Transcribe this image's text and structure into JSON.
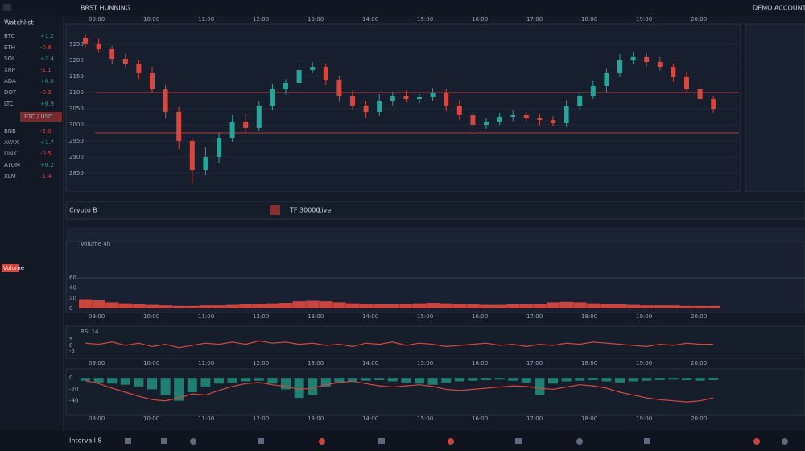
{
  "header": {
    "title": "BRST HUNNING",
    "account": "DEMO ACCOUNT"
  },
  "sidebar": {
    "title": "Watchlist",
    "active": "BTC / USD",
    "volume_button": "Volume",
    "rows": [
      {
        "symbol": "BTC",
        "change": "+1.2"
      },
      {
        "symbol": "ETH",
        "change": "-0.8"
      },
      {
        "symbol": "SOL",
        "change": "+2.4"
      },
      {
        "symbol": "XRP",
        "change": "-1.1"
      },
      {
        "symbol": "ADA",
        "change": "+0.6"
      },
      {
        "symbol": "DOT",
        "change": "-0.3"
      },
      {
        "symbol": "LTC",
        "change": "+0.9"
      },
      {
        "symbol": "BNB",
        "change": "-2.0"
      },
      {
        "symbol": "AVAX",
        "change": "+1.7"
      },
      {
        "symbol": "LINK",
        "change": "-0.5"
      },
      {
        "symbol": "ATOM",
        "change": "+0.2"
      },
      {
        "symbol": "XLM",
        "change": "-1.4"
      }
    ]
  },
  "info_bar": {
    "symbol": "Crypto B",
    "interval": "TF 30000",
    "mode": "Live"
  },
  "volume_panel": {
    "label": "Volume 4h"
  },
  "oscillator_panel": {
    "label": "RSI 14"
  },
  "toolbar": {
    "label": "Intervall 8"
  },
  "time_labels": [
    "09:00",
    "10:00",
    "11:00",
    "12:00",
    "13:00",
    "14:00",
    "15:00",
    "16:00",
    "17:00",
    "18:00",
    "19:00",
    "20:00"
  ],
  "price_chart": {
    "type": "candlestick",
    "open": [
      3270,
      3250,
      3235,
      3205,
      3190,
      3160,
      3110,
      3040,
      2950,
      2860,
      2900,
      2960,
      3010,
      2990,
      3060,
      3110,
      3130,
      3170,
      3180,
      3140,
      3090,
      3060,
      3040,
      3075,
      3090,
      3080,
      3085,
      3100,
      3060,
      3030,
      3000,
      3010,
      3025,
      3030,
      3020,
      3015,
      3005,
      3060,
      3090,
      3120,
      3160,
      3200,
      3210,
      3195,
      3180,
      3150,
      3110,
      3080
    ],
    "high": [
      3282,
      3268,
      3245,
      3220,
      3202,
      3180,
      3124,
      3056,
      2960,
      2930,
      2975,
      3030,
      3035,
      3074,
      3128,
      3142,
      3190,
      3195,
      3190,
      3152,
      3108,
      3074,
      3095,
      3102,
      3106,
      3095,
      3115,
      3112,
      3078,
      3044,
      3020,
      3037,
      3045,
      3040,
      3034,
      3027,
      3076,
      3102,
      3138,
      3174,
      3220,
      3226,
      3222,
      3210,
      3190,
      3164,
      3122,
      3090
    ],
    "low": [
      3236,
      3225,
      3189,
      3178,
      3142,
      3100,
      3020,
      2925,
      2820,
      2845,
      2880,
      2948,
      2972,
      2980,
      3046,
      3094,
      3118,
      3160,
      3125,
      3070,
      3046,
      3022,
      3028,
      3059,
      3070,
      3066,
      3073,
      3042,
      3015,
      2980,
      2988,
      3000,
      3011,
      3008,
      2999,
      2995,
      2993,
      3046,
      3080,
      3102,
      3148,
      3190,
      3181,
      3168,
      3134,
      3100,
      3066,
      3038
    ],
    "close": [
      3250,
      3235,
      3205,
      3190,
      3160,
      3110,
      3040,
      2950,
      2860,
      2900,
      2960,
      3010,
      2990,
      3060,
      3110,
      3130,
      3170,
      3180,
      3140,
      3090,
      3060,
      3040,
      3075,
      3090,
      3080,
      3085,
      3100,
      3060,
      3030,
      3000,
      3010,
      3025,
      3030,
      3020,
      3015,
      3005,
      3060,
      3090,
      3120,
      3160,
      3200,
      3210,
      3195,
      3180,
      3150,
      3110,
      3080,
      3050
    ],
    "levels": [
      3100,
      2975
    ],
    "ylim": [
      2800,
      3300
    ],
    "yticks": [
      3250,
      3200,
      3150,
      3100,
      3050,
      3000,
      2950,
      2900,
      2850
    ]
  },
  "volume_chart": {
    "type": "bar",
    "color": "#c8463f",
    "ylim": [
      0,
      60
    ],
    "yticks": [
      0,
      20,
      40,
      60
    ],
    "values": [
      18,
      16,
      12,
      10,
      8,
      7,
      6,
      5,
      5,
      6,
      6,
      7,
      8,
      9,
      10,
      11,
      14,
      15,
      14,
      12,
      10,
      9,
      8,
      8,
      9,
      10,
      11,
      10,
      9,
      8,
      7,
      7,
      8,
      8,
      9,
      12,
      13,
      12,
      10,
      9,
      8,
      7,
      6,
      6,
      6,
      5,
      5,
      5
    ]
  },
  "oscillator_chart": {
    "type": "line",
    "color": "#d9463e",
    "ylim": [
      -10,
      10
    ],
    "yticks": [
      -5,
      0,
      5
    ],
    "values": [
      2,
      1,
      3,
      0,
      2,
      -1,
      1,
      -2,
      0,
      2,
      1,
      3,
      1,
      4,
      2,
      3,
      1,
      2,
      0,
      1,
      -1,
      2,
      1,
      3,
      0,
      2,
      1,
      -1,
      0,
      1,
      2,
      0,
      1,
      -1,
      1,
      0,
      2,
      1,
      3,
      2,
      1,
      0,
      -1,
      1,
      0,
      2,
      1,
      1
    ]
  },
  "momentum_chart": {
    "type": "bar-line",
    "bar_color": "#1f7f73",
    "line_color": "#d9463e",
    "ylim": [
      -60,
      10
    ],
    "yticks": [
      0,
      -20,
      -40
    ],
    "histogram": [
      -5,
      -8,
      -10,
      -12,
      -15,
      -20,
      -30,
      -40,
      -25,
      -15,
      -10,
      -8,
      -6,
      -5,
      -10,
      -20,
      -35,
      -30,
      -15,
      -8,
      -6,
      -5,
      -4,
      -6,
      -8,
      -10,
      -12,
      -8,
      -6,
      -5,
      -4,
      -3,
      -5,
      -8,
      -30,
      -10,
      -6,
      -5,
      -4,
      -6,
      -8,
      -6,
      -5,
      -4,
      -3,
      -4,
      -5,
      -4
    ],
    "line": [
      -5,
      -10,
      -18,
      -25,
      -32,
      -38,
      -40,
      -35,
      -28,
      -30,
      -22,
      -15,
      -10,
      -8,
      -12,
      -15,
      -20,
      -18,
      -12,
      -8,
      -6,
      -10,
      -14,
      -16,
      -14,
      -12,
      -15,
      -20,
      -22,
      -20,
      -18,
      -16,
      -14,
      -15,
      -18,
      -20,
      -16,
      -12,
      -14,
      -18,
      -25,
      -30,
      -35,
      -38,
      -40,
      -42,
      -40,
      -35
    ]
  }
}
